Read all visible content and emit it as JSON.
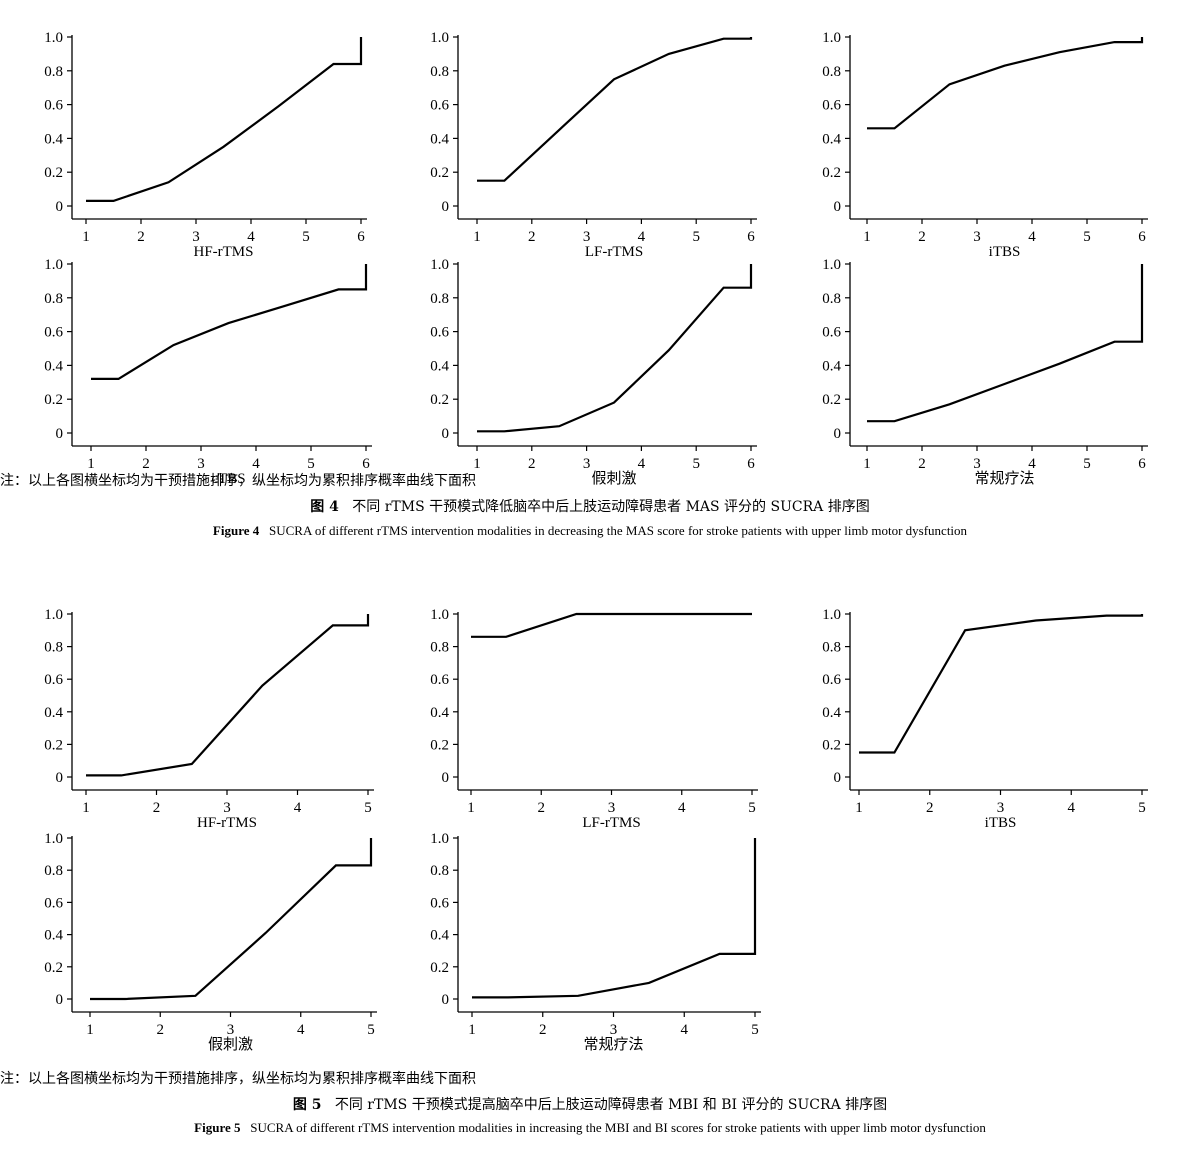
{
  "figure4": {
    "note": "注：以上各图横坐标均为干预措施排序，纵坐标均为累积排序概率曲线下面积",
    "caption_zh_label": "图 4",
    "caption_zh_text": "不同 rTMS 干预模式降低脑卒中后上肢运动障碍患者 MAS 评分的 SUCRA 排序图",
    "caption_en_label": "Figure 4",
    "caption_en_text": "SUCRA of different rTMS intervention modalities in decreasing the MAS score for stroke patients with upper limb motor dysfunction"
  },
  "figure5": {
    "note": "注：以上各图横坐标均为干预措施排序，纵坐标均为累积排序概率曲线下面积",
    "caption_zh_label": "图 5",
    "caption_zh_text": "不同 rTMS 干预模式提高脑卒中后上肢运动障碍患者 MBI 和 BI 评分的 SUCRA 排序图",
    "caption_en_label": "Figure 5",
    "caption_en_text": "SUCRA of different rTMS intervention modalities in increasing the MBI and BI scores for stroke patients with upper limb motor dysfunction"
  },
  "chart_data": [
    {
      "type": "line",
      "xlabel": "HF-rTMS",
      "ylabel": "",
      "title": "",
      "xticks": [
        "1",
        "2",
        "3",
        "4",
        "5",
        "6"
      ],
      "yticks": [
        "0",
        "0.2",
        "0.4",
        "0.6",
        "0.8",
        "1.0"
      ],
      "xlim": [
        1,
        6
      ],
      "ylim": [
        0,
        1
      ],
      "points": [
        [
          1,
          0.03
        ],
        [
          1.5,
          0.03
        ],
        [
          2.5,
          0.14
        ],
        [
          3.5,
          0.35
        ],
        [
          4.5,
          0.59
        ],
        [
          5.5,
          0.84
        ],
        [
          6,
          0.84
        ],
        [
          6,
          1.0
        ]
      ]
    },
    {
      "type": "line",
      "xlabel": "LF-rTMS",
      "ylabel": "",
      "title": "",
      "xticks": [
        "1",
        "2",
        "3",
        "4",
        "5",
        "6"
      ],
      "yticks": [
        "0",
        "0.2",
        "0.4",
        "0.6",
        "0.8",
        "1.0"
      ],
      "xlim": [
        1,
        6
      ],
      "ylim": [
        0,
        1
      ],
      "points": [
        [
          1,
          0.15
        ],
        [
          1.5,
          0.15
        ],
        [
          2.5,
          0.45
        ],
        [
          3.5,
          0.75
        ],
        [
          4.5,
          0.9
        ],
        [
          5.5,
          0.99
        ],
        [
          6,
          0.99
        ],
        [
          6,
          1.0
        ]
      ]
    },
    {
      "type": "line",
      "xlabel": "iTBS",
      "ylabel": "",
      "title": "",
      "xticks": [
        "1",
        "2",
        "3",
        "4",
        "5",
        "6"
      ],
      "yticks": [
        "0",
        "0.2",
        "0.4",
        "0.6",
        "0.8",
        "1.0"
      ],
      "xlim": [
        1,
        6
      ],
      "ylim": [
        0,
        1
      ],
      "points": [
        [
          1,
          0.46
        ],
        [
          1.5,
          0.46
        ],
        [
          2.5,
          0.72
        ],
        [
          3.5,
          0.83
        ],
        [
          4.5,
          0.91
        ],
        [
          5.5,
          0.97
        ],
        [
          6,
          0.97
        ],
        [
          6,
          1.0
        ]
      ]
    },
    {
      "type": "line",
      "xlabel": "cTBS",
      "ylabel": "",
      "title": "",
      "xticks": [
        "1",
        "2",
        "3",
        "4",
        "5",
        "6"
      ],
      "yticks": [
        "0",
        "0.2",
        "0.4",
        "0.6",
        "0.8",
        "1.0"
      ],
      "xlim": [
        1,
        6
      ],
      "ylim": [
        0,
        1
      ],
      "points": [
        [
          1,
          0.32
        ],
        [
          1.5,
          0.32
        ],
        [
          2.5,
          0.52
        ],
        [
          3.5,
          0.65
        ],
        [
          4.5,
          0.75
        ],
        [
          5.5,
          0.85
        ],
        [
          6,
          0.85
        ],
        [
          6,
          1.0
        ]
      ]
    },
    {
      "type": "line",
      "xlabel": "假刺激",
      "ylabel": "",
      "title": "",
      "xticks": [
        "1",
        "2",
        "3",
        "4",
        "5",
        "6"
      ],
      "yticks": [
        "0",
        "0.2",
        "0.4",
        "0.6",
        "0.8",
        "1.0"
      ],
      "xlim": [
        1,
        6
      ],
      "ylim": [
        0,
        1
      ],
      "points": [
        [
          1,
          0.01
        ],
        [
          1.5,
          0.01
        ],
        [
          2.5,
          0.04
        ],
        [
          3.5,
          0.18
        ],
        [
          4.5,
          0.49
        ],
        [
          5.5,
          0.86
        ],
        [
          6,
          0.86
        ],
        [
          6,
          1.0
        ]
      ]
    },
    {
      "type": "line",
      "xlabel": "常规疗法",
      "ylabel": "",
      "title": "",
      "xticks": [
        "1",
        "2",
        "3",
        "4",
        "5",
        "6"
      ],
      "yticks": [
        "0",
        "0.2",
        "0.4",
        "0.6",
        "0.8",
        "1.0"
      ],
      "xlim": [
        1,
        6
      ],
      "ylim": [
        0,
        1
      ],
      "points": [
        [
          1,
          0.07
        ],
        [
          1.5,
          0.07
        ],
        [
          2.5,
          0.17
        ],
        [
          3.5,
          0.29
        ],
        [
          4.5,
          0.41
        ],
        [
          5.5,
          0.54
        ],
        [
          6,
          0.54
        ],
        [
          6,
          1.0
        ]
      ]
    },
    {
      "type": "line",
      "xlabel": "HF-rTMS",
      "ylabel": "",
      "title": "",
      "xticks": [
        "1",
        "2",
        "3",
        "4",
        "5"
      ],
      "yticks": [
        "0",
        "0.2",
        "0.4",
        "0.6",
        "0.8",
        "1.0"
      ],
      "xlim": [
        1,
        5
      ],
      "ylim": [
        0,
        1
      ],
      "points": [
        [
          1,
          0.01
        ],
        [
          1.5,
          0.01
        ],
        [
          2.5,
          0.08
        ],
        [
          3.5,
          0.56
        ],
        [
          4.5,
          0.93
        ],
        [
          5,
          0.93
        ],
        [
          5,
          1.0
        ]
      ]
    },
    {
      "type": "line",
      "xlabel": "LF-rTMS",
      "ylabel": "",
      "title": "",
      "xticks": [
        "1",
        "2",
        "3",
        "4",
        "5"
      ],
      "yticks": [
        "0",
        "0.2",
        "0.4",
        "0.6",
        "0.8",
        "1.0"
      ],
      "xlim": [
        1,
        5
      ],
      "ylim": [
        0,
        1
      ],
      "points": [
        [
          1,
          0.86
        ],
        [
          1.5,
          0.86
        ],
        [
          2.5,
          1.0
        ],
        [
          3.5,
          1.0
        ],
        [
          4.5,
          1.0
        ],
        [
          5,
          1.0
        ]
      ]
    },
    {
      "type": "line",
      "xlabel": "iTBS",
      "ylabel": "",
      "title": "",
      "xticks": [
        "1",
        "2",
        "3",
        "4",
        "5"
      ],
      "yticks": [
        "0",
        "0.2",
        "0.4",
        "0.6",
        "0.8",
        "1.0"
      ],
      "xlim": [
        1,
        5
      ],
      "ylim": [
        0,
        1
      ],
      "points": [
        [
          1,
          0.15
        ],
        [
          1.5,
          0.15
        ],
        [
          2.5,
          0.9
        ],
        [
          3.5,
          0.96
        ],
        [
          4.5,
          0.99
        ],
        [
          5,
          0.99
        ],
        [
          5,
          1.0
        ]
      ]
    },
    {
      "type": "line",
      "xlabel": "假刺激",
      "ylabel": "",
      "title": "",
      "xticks": [
        "1",
        "2",
        "3",
        "4",
        "5"
      ],
      "yticks": [
        "0",
        "0.2",
        "0.4",
        "0.6",
        "0.8",
        "1.0"
      ],
      "xlim": [
        1,
        5
      ],
      "ylim": [
        0,
        1
      ],
      "points": [
        [
          1,
          0
        ],
        [
          1.5,
          0
        ],
        [
          2.5,
          0.02
        ],
        [
          3.5,
          0.41
        ],
        [
          4.5,
          0.83
        ],
        [
          5,
          0.83
        ],
        [
          5,
          1.0
        ]
      ]
    },
    {
      "type": "line",
      "xlabel": "常规疗法",
      "ylabel": "",
      "title": "",
      "xticks": [
        "1",
        "2",
        "3",
        "4",
        "5"
      ],
      "yticks": [
        "0",
        "0.2",
        "0.4",
        "0.6",
        "0.8",
        "1.0"
      ],
      "xlim": [
        1,
        5
      ],
      "ylim": [
        0,
        1
      ],
      "points": [
        [
          1,
          0.01
        ],
        [
          1.5,
          0.01
        ],
        [
          2.5,
          0.02
        ],
        [
          3.5,
          0.1
        ],
        [
          4.5,
          0.28
        ],
        [
          5,
          0.28
        ],
        [
          5,
          1.0
        ]
      ]
    }
  ]
}
